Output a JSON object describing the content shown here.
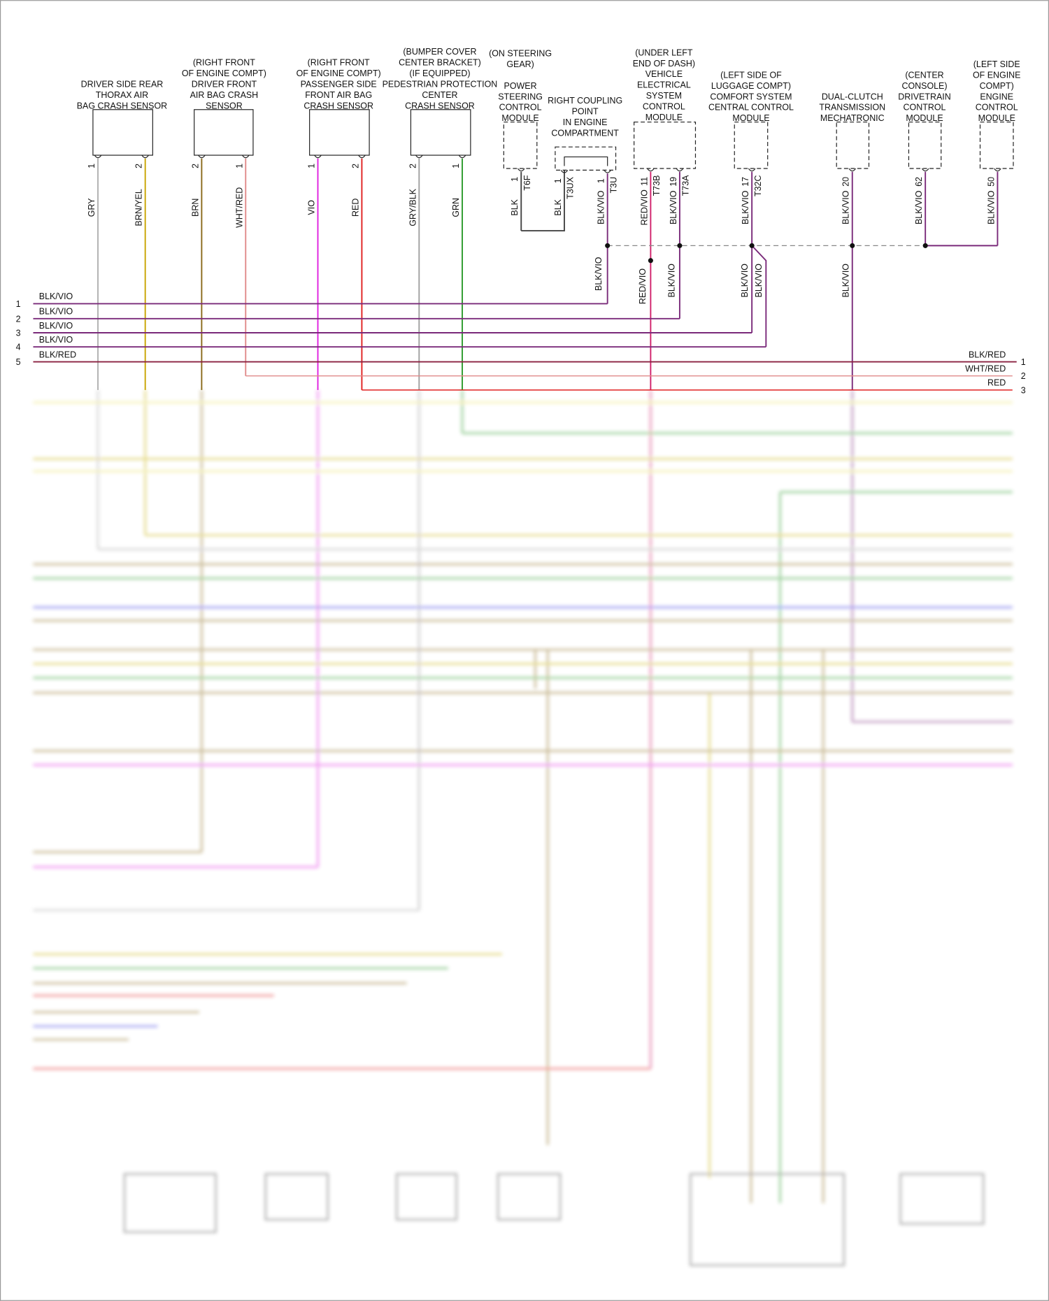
{
  "components": [
    {
      "label": [
        "DRIVER SIDE REAR",
        "THORAX AIR",
        "BAG CRASH SENSOR"
      ],
      "pins": [
        {
          "pin": "1",
          "wire": "GRY"
        },
        {
          "pin": "2",
          "wire": "BRN/YEL"
        }
      ]
    },
    {
      "label": [
        "(RIGHT FRONT",
        "OF ENGINE COMPT)",
        "DRIVER FRONT",
        "AIR BAG CRASH",
        "SENSOR"
      ],
      "pins": [
        {
          "pin": "2",
          "wire": "BRN"
        },
        {
          "pin": "1",
          "wire": "WHT/RED"
        }
      ]
    },
    {
      "label": [
        "(RIGHT FRONT",
        "OF ENGINE COMPT)",
        "PASSENGER SIDE",
        "FRONT AIR BAG",
        "CRASH SENSOR"
      ],
      "pins": [
        {
          "pin": "1",
          "wire": "VIO"
        },
        {
          "pin": "2",
          "wire": "RED"
        }
      ]
    },
    {
      "label": [
        "(BUMPER COVER",
        "CENTER BRACKET)",
        "(IF EQUIPPED)",
        "PEDESTRIAN PROTECTION",
        "CENTER",
        "CRASH SENSOR"
      ],
      "pins": [
        {
          "pin": "2",
          "wire": "GRY/BLK"
        },
        {
          "pin": "1",
          "wire": "GRN"
        }
      ]
    },
    {
      "label": [
        "(ON STEERING",
        "GEAR)",
        "",
        "POWER",
        "STEERING",
        "CONTROL",
        "MODULE"
      ],
      "pins": [
        {
          "pin": "1",
          "connector": "T6F",
          "wire": "BLK"
        }
      ]
    },
    {
      "label": [
        "RIGHT COUPLING",
        "POINT",
        "IN ENGINE",
        "COMPARTMENT"
      ],
      "pins": [
        {
          "pin": "1",
          "connector": "T3UX",
          "wire": "BLK"
        },
        {
          "pin": "1",
          "connector": "T3U",
          "wire": "BLK/VIO"
        }
      ]
    },
    {
      "label": [
        "(UNDER LEFT",
        "END OF DASH)",
        "VEHICLE",
        "ELECTRICAL",
        "SYSTEM",
        "CONTROL",
        "MODULE"
      ],
      "pins": [
        {
          "pin": "11",
          "connector": "T73B",
          "wire": "RED/VIO"
        },
        {
          "pin": "19",
          "connector": "T73A",
          "wire": "BLK/VIO"
        }
      ]
    },
    {
      "label": [
        "(LEFT SIDE OF",
        "LUGGAGE COMPT)",
        "COMFORT SYSTEM",
        "CENTRAL CONTROL",
        "MODULE"
      ],
      "pins": [
        {
          "pin": "17",
          "connector": "T32C",
          "wire": "BLK/VIO"
        }
      ]
    },
    {
      "label": [
        "DUAL-CLUTCH",
        "TRANSMISSION",
        "MECHATRONIC"
      ],
      "pins": [
        {
          "pin": "20",
          "wire": "BLK/VIO"
        }
      ]
    },
    {
      "label": [
        "(CENTER",
        "CONSOLE)",
        "DRIVETRAIN",
        "CONTROL",
        "MODULE"
      ],
      "pins": [
        {
          "pin": "62",
          "wire": "BLK/VIO"
        }
      ]
    },
    {
      "label": [
        "(LEFT SIDE",
        "OF ENGINE",
        "COMPT)",
        "ENGINE",
        "CONTROL",
        "MODULE"
      ],
      "pins": [
        {
          "pin": "50",
          "wire": "BLK/VIO"
        }
      ]
    }
  ],
  "splice_wires": [
    "BLK/VIO",
    "RED/VIO",
    "BLK/VIO",
    "BLK/VIO",
    "BLK/VIO",
    "BLK/VIO"
  ],
  "left_bus": [
    {
      "num": "1",
      "wire": "BLK/VIO"
    },
    {
      "num": "2",
      "wire": "BLK/VIO"
    },
    {
      "num": "3",
      "wire": "BLK/VIO"
    },
    {
      "num": "4",
      "wire": "BLK/VIO"
    },
    {
      "num": "5",
      "wire": "BLK/RED"
    }
  ],
  "right_bus": [
    {
      "num": "1",
      "wire": "BLK/RED"
    },
    {
      "num": "2",
      "wire": "WHT/RED"
    },
    {
      "num": "3",
      "wire": "RED"
    }
  ]
}
